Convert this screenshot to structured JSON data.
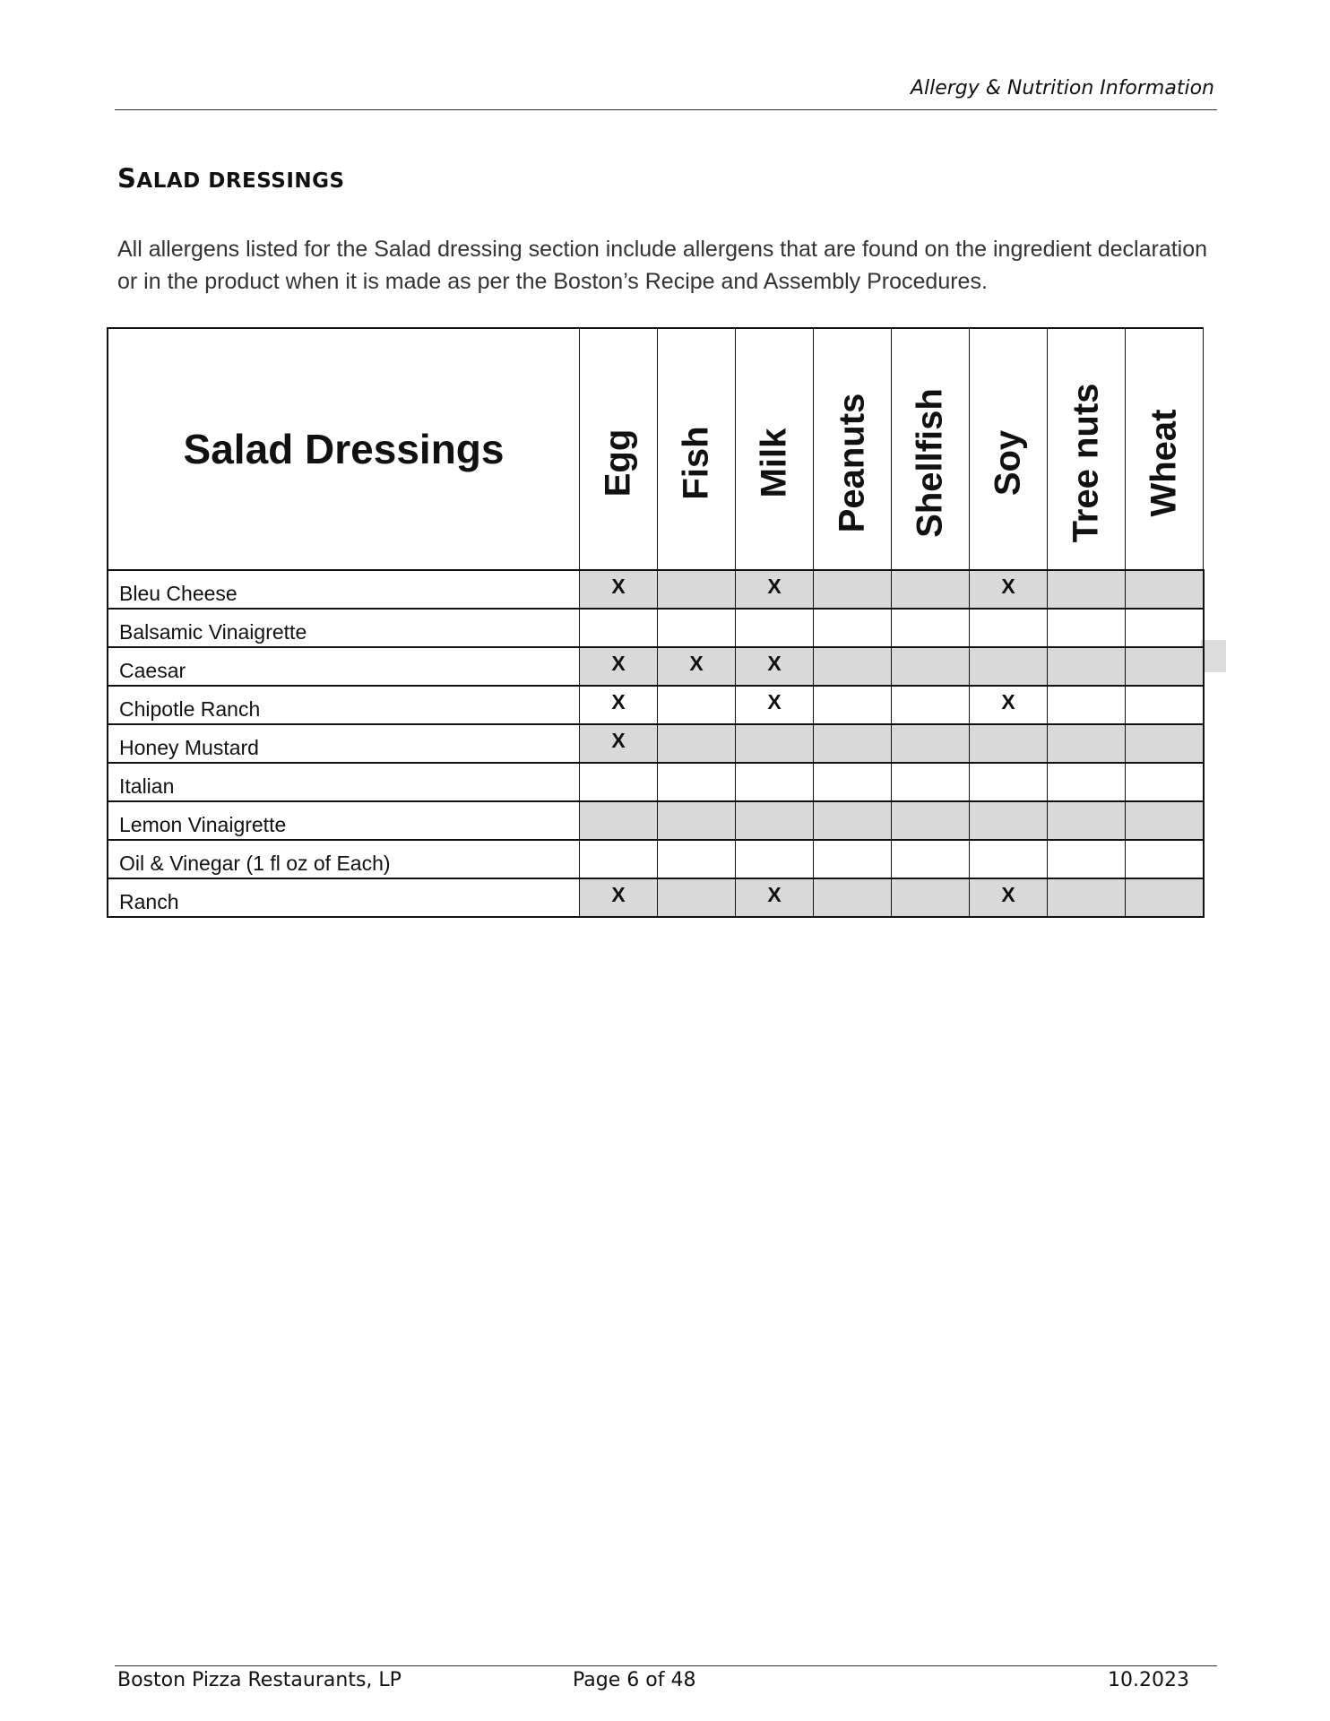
{
  "header": {
    "title": "Allergy & Nutrition Information"
  },
  "section": {
    "title_first": "S",
    "title_rest": "ALAD DRESSINGS",
    "description": "All allergens listed for the Salad dressing section include allergens that are found on the ingredient declaration or in the product when it is made as per the Boston’s Recipe and Assembly Procedures."
  },
  "table": {
    "title": "Salad Dressings",
    "columns": [
      "Egg",
      "Fish",
      "Milk",
      "Peanuts",
      "Shellfish",
      "Soy",
      "Tree nuts",
      "Wheat"
    ],
    "rows": [
      {
        "name": "Bleu Cheese",
        "cells": [
          "X",
          "",
          "X",
          "",
          "",
          "X",
          "",
          ""
        ],
        "shaded": true
      },
      {
        "name": "Balsamic Vinaigrette",
        "cells": [
          "",
          "",
          "",
          "",
          "",
          "",
          "",
          ""
        ],
        "shaded": false
      },
      {
        "name": "Caesar",
        "cells": [
          "X",
          "X",
          "X",
          "",
          "",
          "",
          "",
          ""
        ],
        "shaded": true
      },
      {
        "name": "Chipotle Ranch",
        "cells": [
          "X",
          "",
          "X",
          "",
          "",
          "X",
          "",
          ""
        ],
        "shaded": false
      },
      {
        "name": "Honey Mustard",
        "cells": [
          "X",
          "",
          "",
          "",
          "",
          "",
          "",
          ""
        ],
        "shaded": true
      },
      {
        "name": "Italian",
        "cells": [
          "",
          "",
          "",
          "",
          "",
          "",
          "",
          ""
        ],
        "shaded": false
      },
      {
        "name": "Lemon Vinaigrette",
        "cells": [
          "",
          "",
          "",
          "",
          "",
          "",
          "",
          ""
        ],
        "shaded": true
      },
      {
        "name": "Oil & Vinegar (1 fl oz of Each)",
        "cells": [
          "",
          "",
          "",
          "",
          "",
          "",
          "",
          ""
        ],
        "shaded": false
      },
      {
        "name": "Ranch",
        "cells": [
          "X",
          "",
          "X",
          "",
          "",
          "X",
          "",
          ""
        ],
        "shaded": true
      }
    ]
  },
  "footer": {
    "company": "Boston Pizza Restaurants, LP",
    "page": "Page 6 of 48",
    "date": "10.2023"
  },
  "colors": {
    "shade": "#d9d9d9"
  }
}
